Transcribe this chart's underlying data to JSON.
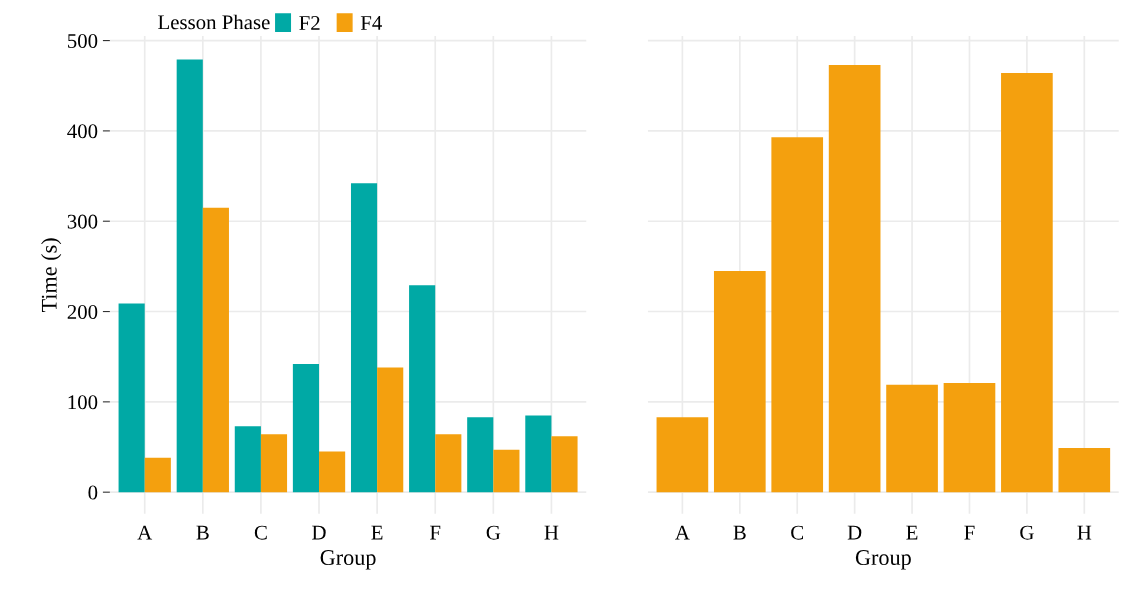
{
  "chart_data": [
    {
      "type": "bar",
      "categories": [
        "A",
        "B",
        "C",
        "D",
        "E",
        "F",
        "G",
        "H"
      ],
      "xlabel": "Group",
      "ylabel": "Time (s)",
      "legend_title": "Lesson Phase",
      "legend": "top left",
      "grid": true,
      "ylim": [
        -24,
        505
      ],
      "yticks": [
        0,
        100,
        200,
        300,
        400,
        500
      ],
      "series": [
        {
          "name": "F2",
          "color": "#00a9a5",
          "values": [
            209,
            479,
            73,
            142,
            342,
            229,
            83,
            85
          ]
        },
        {
          "name": "F4",
          "color": "#f4a00e",
          "values": [
            38,
            315,
            64,
            45,
            138,
            64,
            47,
            62
          ]
        }
      ]
    },
    {
      "type": "bar",
      "categories": [
        "A",
        "B",
        "C",
        "D",
        "E",
        "F",
        "G",
        "H"
      ],
      "xlabel": "Group",
      "grid": true,
      "ylim": [
        -24,
        505
      ],
      "yticks": [
        0,
        100,
        200,
        300,
        400,
        500
      ],
      "tick_labels": "x",
      "series": [
        {
          "color": "#f4a00e",
          "values": [
            83,
            245,
            393,
            473,
            119,
            121,
            464,
            49
          ]
        }
      ]
    }
  ]
}
